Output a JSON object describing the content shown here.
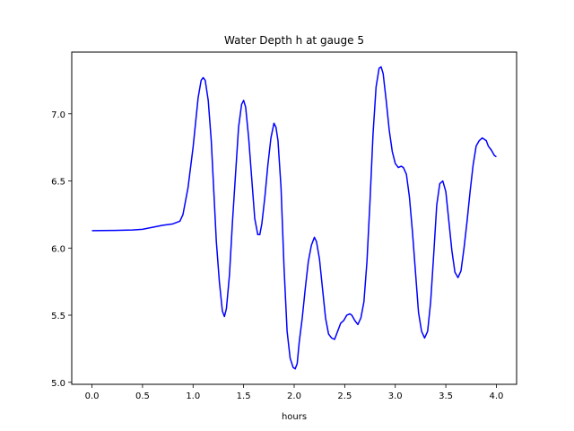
{
  "chart_data": {
    "type": "line",
    "title": "Water Depth h at gauge 5",
    "xlabel": "hours",
    "ylabel": "",
    "xlim": [
      -0.2,
      4.2
    ],
    "ylim": [
      4.985,
      7.46
    ],
    "xticks": [
      0.0,
      0.5,
      1.0,
      1.5,
      2.0,
      2.5,
      3.0,
      3.5,
      4.0
    ],
    "xtick_labels": [
      "0.0",
      "0.5",
      "1.0",
      "1.5",
      "2.0",
      "2.5",
      "3.0",
      "3.5",
      "4.0"
    ],
    "yticks": [
      5.0,
      5.5,
      6.0,
      6.5,
      7.0
    ],
    "ytick_labels": [
      "5.0",
      "5.5",
      "6.0",
      "6.5",
      "7.0"
    ],
    "grid": false,
    "series": [
      {
        "color": "#0000ff",
        "x": [
          0.0,
          0.2,
          0.4,
          0.5,
          0.6,
          0.7,
          0.8,
          0.87,
          0.9,
          0.95,
          1.0,
          1.05,
          1.08,
          1.1,
          1.12,
          1.15,
          1.18,
          1.2,
          1.23,
          1.26,
          1.29,
          1.31,
          1.33,
          1.36,
          1.39,
          1.42,
          1.45,
          1.48,
          1.5,
          1.52,
          1.55,
          1.58,
          1.61,
          1.64,
          1.66,
          1.68,
          1.71,
          1.74,
          1.77,
          1.8,
          1.82,
          1.84,
          1.87,
          1.9,
          1.93,
          1.96,
          1.99,
          2.01,
          2.03,
          2.05,
          2.08,
          2.11,
          2.14,
          2.17,
          2.2,
          2.22,
          2.25,
          2.28,
          2.31,
          2.34,
          2.37,
          2.4,
          2.43,
          2.46,
          2.49,
          2.52,
          2.55,
          2.57,
          2.6,
          2.63,
          2.66,
          2.69,
          2.72,
          2.75,
          2.78,
          2.81,
          2.84,
          2.86,
          2.88,
          2.91,
          2.94,
          2.97,
          3.0,
          3.03,
          3.06,
          3.08,
          3.11,
          3.14,
          3.17,
          3.2,
          3.23,
          3.26,
          3.29,
          3.32,
          3.35,
          3.38,
          3.41,
          3.44,
          3.47,
          3.5,
          3.53,
          3.56,
          3.59,
          3.62,
          3.65,
          3.68,
          3.71,
          3.74,
          3.77,
          3.8,
          3.83,
          3.86,
          3.88,
          3.9,
          3.92,
          3.95,
          3.98,
          4.0
        ],
        "y": [
          6.13,
          6.131,
          6.135,
          6.14,
          6.155,
          6.17,
          6.18,
          6.2,
          6.25,
          6.45,
          6.75,
          7.12,
          7.25,
          7.27,
          7.25,
          7.1,
          6.8,
          6.5,
          6.05,
          5.75,
          5.53,
          5.49,
          5.55,
          5.8,
          6.2,
          6.55,
          6.9,
          7.07,
          7.1,
          7.05,
          6.82,
          6.52,
          6.22,
          6.1,
          6.1,
          6.18,
          6.38,
          6.62,
          6.82,
          6.93,
          6.9,
          6.8,
          6.45,
          5.85,
          5.38,
          5.18,
          5.11,
          5.1,
          5.14,
          5.3,
          5.48,
          5.7,
          5.9,
          6.02,
          6.08,
          6.05,
          5.92,
          5.7,
          5.48,
          5.36,
          5.33,
          5.32,
          5.38,
          5.44,
          5.46,
          5.5,
          5.51,
          5.5,
          5.46,
          5.43,
          5.48,
          5.6,
          5.9,
          6.35,
          6.85,
          7.2,
          7.34,
          7.35,
          7.3,
          7.1,
          6.88,
          6.72,
          6.63,
          6.6,
          6.61,
          6.6,
          6.55,
          6.38,
          6.12,
          5.82,
          5.52,
          5.38,
          5.33,
          5.38,
          5.6,
          5.95,
          6.32,
          6.48,
          6.5,
          6.42,
          6.2,
          5.98,
          5.82,
          5.78,
          5.83,
          6.0,
          6.2,
          6.42,
          6.62,
          6.76,
          6.8,
          6.82,
          6.81,
          6.8,
          6.76,
          6.73,
          6.69,
          6.68
        ]
      }
    ]
  }
}
